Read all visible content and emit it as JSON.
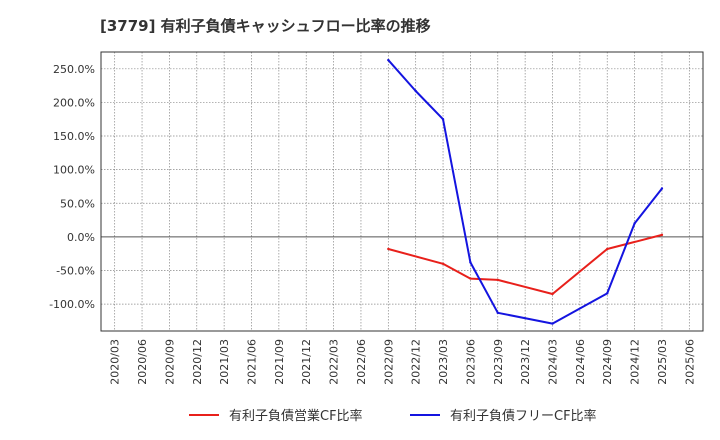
{
  "chart_data": {
    "type": "line",
    "title": "[3779]  有利子負債キャッシュフロー比率の推移",
    "xlabel": "",
    "ylabel": "",
    "ylim": [
      -140,
      275
    ],
    "yticks": [
      250,
      200,
      150,
      100,
      50,
      0,
      -50,
      -100
    ],
    "ytick_labels": [
      "250.0%",
      "200.0%",
      "150.0%",
      "100.0%",
      "50.0%",
      "0.0%",
      "-50.0%",
      "-100.0%"
    ],
    "x_tick_labels": [
      "2020/03",
      "2020/06",
      "2020/09",
      "2020/12",
      "2021/03",
      "2021/06",
      "2021/09",
      "2021/12",
      "2022/03",
      "2022/06",
      "2022/09",
      "2022/12",
      "2023/03",
      "2023/06",
      "2023/09",
      "2023/12",
      "2024/03",
      "2024/06",
      "2024/09",
      "2024/12",
      "2025/03",
      "2025/06"
    ],
    "grid": true,
    "legend_position": "bottom",
    "series": [
      {
        "name": "有利子負債営業CF比率",
        "color": "#e8201b",
        "x": [
          "2022/09",
          "2023/03",
          "2023/06",
          "2023/09",
          "2024/03",
          "2024/09",
          "2025/03"
        ],
        "values": [
          -18,
          -40,
          -62,
          -64,
          -85,
          -18,
          3
        ]
      },
      {
        "name": "有利子負債フリーCF比率",
        "color": "#1414e0",
        "x": [
          "2022/09",
          "2022/12",
          "2023/03",
          "2023/06",
          "2023/09",
          "2024/03",
          "2024/09",
          "2024/12",
          "2025/03"
        ],
        "values": [
          263,
          217,
          175,
          -38,
          -113,
          -129,
          -84,
          20,
          72
        ]
      }
    ]
  }
}
